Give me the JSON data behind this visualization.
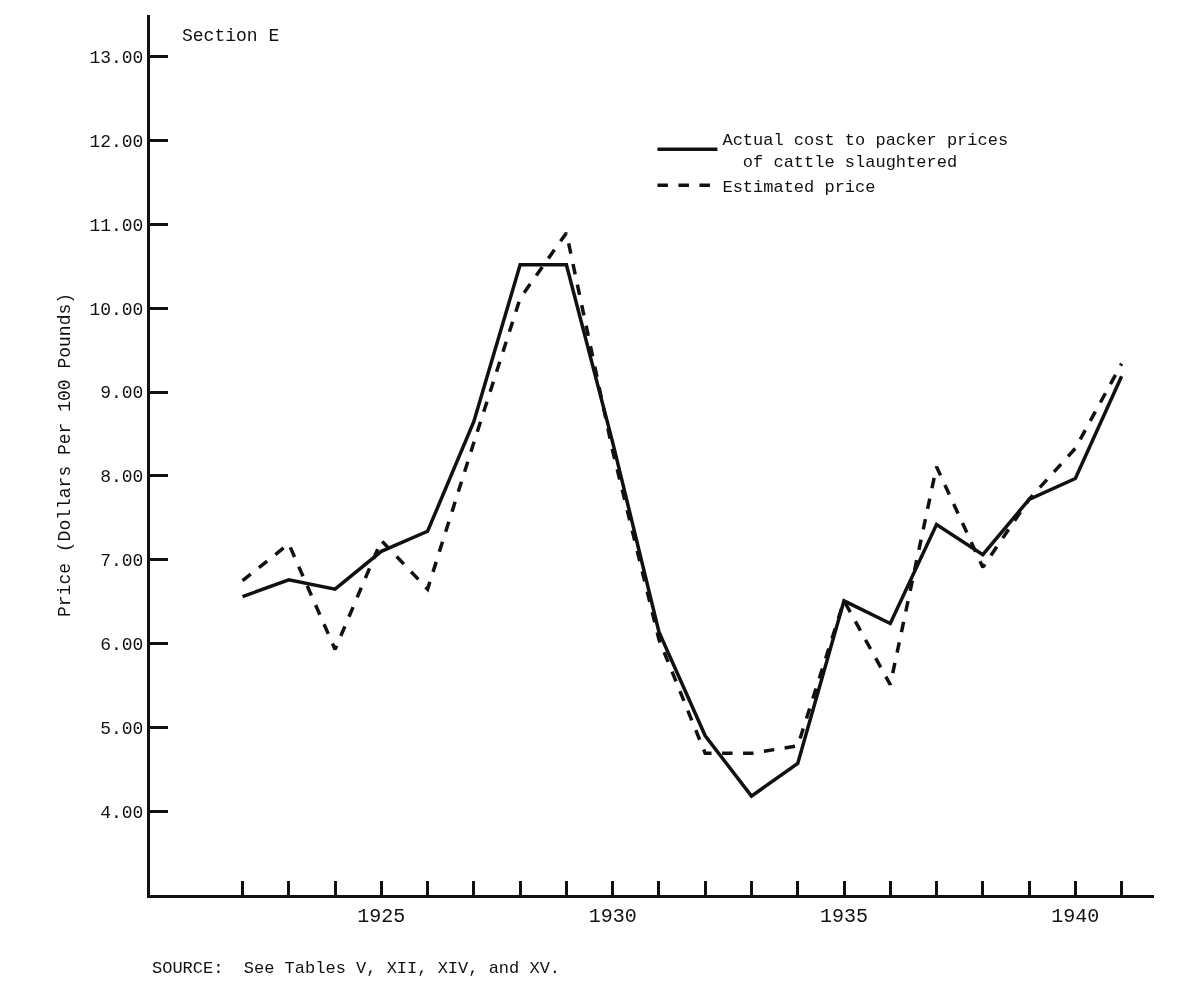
{
  "chart_data": {
    "type": "line",
    "title": "Section E",
    "ylabel": "Price (Dollars Per 100 Pounds)",
    "annotations": [
      "SOURCE:  See Tables V, XII, XIV, and XV."
    ],
    "x": [
      1922,
      1923,
      1924,
      1925,
      1926,
      1927,
      1928,
      1929,
      1930,
      1931,
      1932,
      1933,
      1934,
      1935,
      1936,
      1937,
      1938,
      1939,
      1940,
      1941
    ],
    "series": [
      {
        "name": "Actual cost to packer prices\n  of cattle slaughtered",
        "color": "#111111",
        "line_style": "solid",
        "values": [
          6.56,
          6.76,
          6.65,
          7.1,
          7.34,
          8.65,
          10.52,
          10.52,
          8.4,
          6.14,
          4.9,
          4.18,
          4.57,
          6.51,
          6.24,
          7.42,
          7.06,
          7.72,
          7.97,
          9.19
        ]
      },
      {
        "name": "Estimated price",
        "color": "#111111",
        "line_style": "dashed",
        "values": [
          6.75,
          7.19,
          5.93,
          7.23,
          6.65,
          8.4,
          10.12,
          10.9,
          8.3,
          6.05,
          4.69,
          4.69,
          4.78,
          6.51,
          5.51,
          8.11,
          6.91,
          7.72,
          8.33,
          9.34
        ]
      }
    ],
    "xlim": [
      1920,
      1941.7
    ],
    "ylim": [
      3,
      13.5
    ],
    "xticks": [
      {
        "value": 1922,
        "label": null
      },
      {
        "value": 1923,
        "label": null
      },
      {
        "value": 1924,
        "label": null
      },
      1925,
      {
        "value": 1926,
        "label": null
      },
      {
        "value": 1927,
        "label": null
      },
      {
        "value": 1928,
        "label": null
      },
      {
        "value": 1929,
        "label": null
      },
      1930,
      {
        "value": 1931,
        "label": null
      },
      {
        "value": 1932,
        "label": null
      },
      {
        "value": 1933,
        "label": null
      },
      {
        "value": 1934,
        "label": null
      },
      1935,
      {
        "value": 1936,
        "label": null
      },
      {
        "value": 1937,
        "label": null
      },
      {
        "value": 1938,
        "label": null
      },
      {
        "value": 1939,
        "label": null
      },
      1940,
      {
        "value": 1941,
        "label": null
      }
    ],
    "yticks": [
      {
        "value": 4,
        "label": "4.00"
      },
      {
        "value": 5,
        "label": "5.00"
      },
      {
        "value": 6,
        "label": "6.00"
      },
      {
        "value": 7,
        "label": "7.00"
      },
      {
        "value": 8,
        "label": "8.00"
      },
      {
        "value": 9,
        "label": "9.00"
      },
      {
        "value": 10,
        "label": "10.00"
      },
      {
        "value": 11,
        "label": "11.00"
      },
      {
        "value": 12,
        "label": "12.00"
      },
      {
        "value": 13,
        "label": "13.00"
      }
    ],
    "legend": "top right",
    "marker": "none"
  }
}
